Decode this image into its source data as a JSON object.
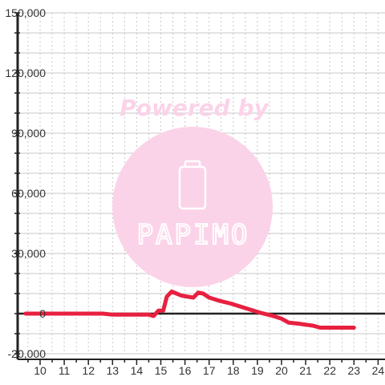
{
  "chart_data": {
    "type": "line",
    "title": "",
    "xlabel": "",
    "ylabel": "",
    "xlim": [
      9.4,
      24.3
    ],
    "ylim": [
      -20000,
      150000
    ],
    "x_ticks": [
      10,
      11,
      12,
      13,
      14,
      15,
      16,
      17,
      18,
      19,
      20,
      21,
      22,
      23,
      24
    ],
    "y_ticks": [
      150000,
      120000,
      90000,
      60000,
      30000,
      0,
      -20000
    ],
    "y_tick_labels": [
      "150,000",
      "120,000",
      "90,000",
      "60,000",
      "30,000",
      "0",
      "-20,000"
    ],
    "grid": true,
    "colors": {
      "line": "#e8203f",
      "axis": "#222222",
      "grid": "#c8c8c8",
      "watermark": "#fbd3e9"
    },
    "series": [
      {
        "x": [
          9.4,
          10.0,
          11.0,
          12.0,
          12.6,
          13.0,
          14.0,
          14.5,
          14.7,
          14.9,
          15.1,
          15.25,
          15.45,
          15.65,
          15.85,
          16.1,
          16.35,
          16.55,
          16.75,
          17.0,
          17.4,
          17.9,
          18.3,
          18.7,
          19.1,
          19.6,
          20.0,
          20.3,
          20.7,
          21.0,
          21.3,
          21.6,
          22.0,
          22.5,
          23.0
        ],
        "values": [
          0,
          0,
          0,
          0,
          0,
          -500,
          -500,
          -500,
          -1200,
          1500,
          1500,
          8500,
          11000,
          10000,
          9000,
          8500,
          8000,
          10500,
          10000,
          8000,
          6500,
          5000,
          3500,
          2000,
          500,
          -1000,
          -2500,
          -4500,
          -5000,
          -5500,
          -6000,
          -7000,
          -7000,
          -7000,
          -7000
        ]
      }
    ],
    "watermark": {
      "text": "Powered by",
      "logo_text": "PAPIMO",
      "icon": "phone-icon"
    }
  }
}
